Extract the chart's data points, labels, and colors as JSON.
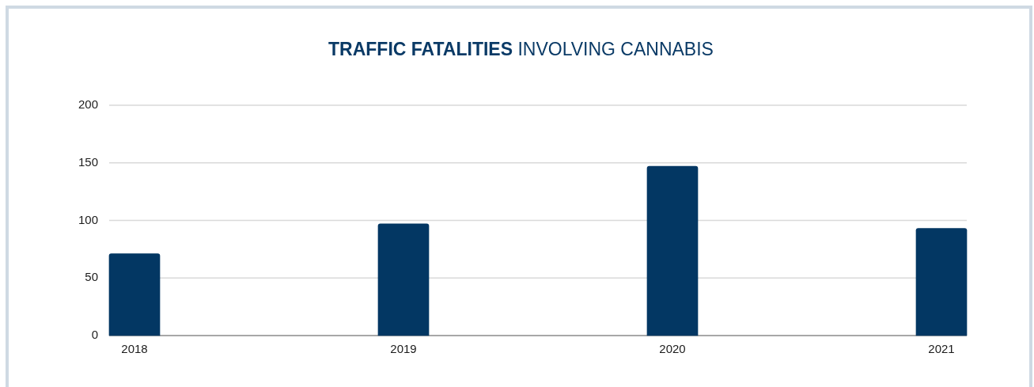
{
  "chart_data": {
    "type": "bar",
    "title": "TRAFFIC FATALITIES INVOLVING CANNABIS",
    "categories": [
      "2018",
      "2019",
      "2020",
      "2021"
    ],
    "values": [
      71,
      97,
      147,
      93
    ],
    "color": "#033763",
    "ylim": [
      0,
      200
    ],
    "yticks": [
      0,
      50,
      100,
      150,
      200
    ],
    "grid": "y"
  }
}
